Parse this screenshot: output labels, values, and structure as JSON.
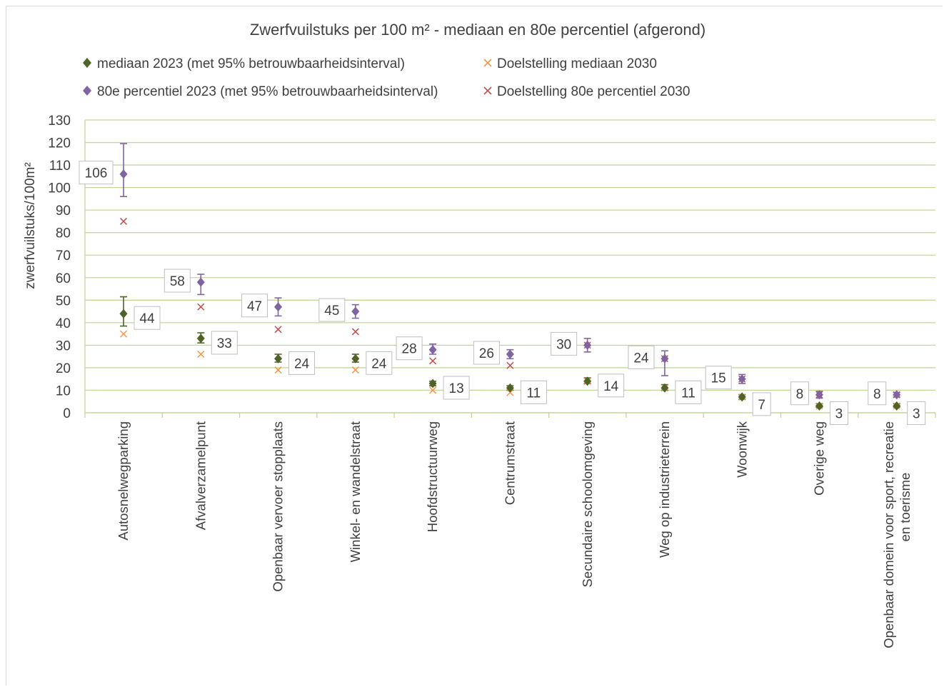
{
  "chart_data": {
    "type": "scatter",
    "title": "Zwerfvuilstuks per 100 m² - mediaan en 80e percentiel (afgerond)",
    "ylabel": "zwerfvuilstuks/100m²",
    "ylim": [
      0,
      130
    ],
    "yticks": [
      0,
      10,
      20,
      30,
      40,
      50,
      60,
      70,
      80,
      90,
      100,
      110,
      120,
      130
    ],
    "grid": true,
    "legend_position": "top",
    "categories": [
      "Autosnelwegparking",
      "Afvalverzamelpunt",
      "Openbaar vervoer stopplaats",
      "Winkel- en wandelstraat",
      "Hoofdstructuurweg",
      "Centrumstraat",
      "Secundaire schoolomgeving",
      "Weg op industrieterrein",
      "Woonwijk",
      "Overige weg",
      "Openbaar domein voor sport, recreatie en toerisme"
    ],
    "series": [
      {
        "name": "mediaan 2023 (met 95% betrouwbaarheidsinterval)",
        "marker": "diamond",
        "color": "#4f6228",
        "values": [
          44,
          33,
          24,
          24,
          13,
          11,
          14,
          11,
          7,
          3,
          3
        ],
        "ci_low": [
          38.5,
          31,
          22.5,
          22.5,
          12,
          10,
          13,
          10,
          6,
          2.5,
          2.5
        ],
        "ci_high": [
          51.5,
          35.5,
          26,
          26,
          14,
          12,
          15.5,
          12.5,
          8,
          4,
          4
        ]
      },
      {
        "name": "Doelstelling mediaan 2030",
        "marker": "x",
        "color": "#f79646",
        "values": [
          35,
          26,
          19,
          19,
          10,
          9,
          14,
          11,
          7,
          3,
          3
        ]
      },
      {
        "name": "80e percentiel 2023 (met 95% betrouwbaarheidsinterval)",
        "marker": "diamond",
        "color": "#8064a2",
        "values": [
          106,
          58,
          47,
          45,
          28,
          26,
          30,
          24,
          15,
          8,
          8
        ],
        "ci_low": [
          96,
          52.5,
          43,
          42,
          26,
          24,
          27,
          16.5,
          13,
          6.5,
          7
        ],
        "ci_high": [
          119.5,
          61.5,
          51,
          48,
          30.5,
          28,
          33,
          27.5,
          17,
          9.5,
          9
        ]
      },
      {
        "name": "Doelstelling 80e percentiel 2030",
        "marker": "x",
        "color": "#c0504d",
        "values": [
          85,
          47,
          37,
          36,
          23,
          21,
          30,
          24,
          15,
          8,
          8
        ]
      }
    ],
    "data_labels": {
      "mediaan": [
        "44",
        "33",
        "24",
        "24",
        "13",
        "11",
        "14",
        "11",
        "7",
        "3",
        "3"
      ],
      "p80": [
        "106",
        "58",
        "47",
        "45",
        "28",
        "26",
        "30",
        "24",
        "15",
        "8",
        "8"
      ]
    }
  },
  "colors": {
    "grid": "#c4d79b",
    "axis": "#c4d79b",
    "text": "#404040",
    "label_border": "#bfbfbf"
  }
}
